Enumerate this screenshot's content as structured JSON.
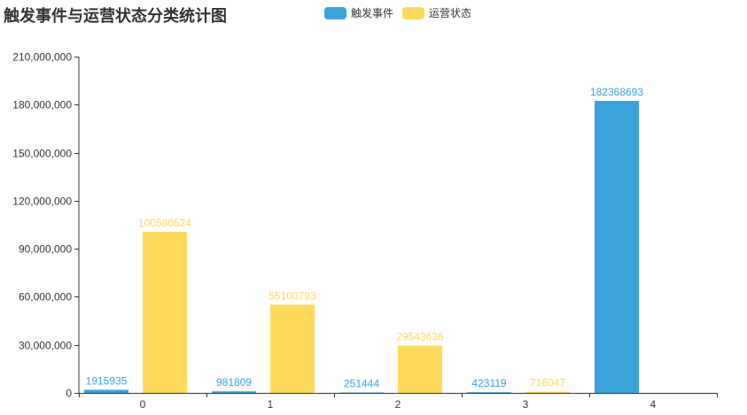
{
  "chart_data": {
    "type": "bar",
    "title": "触发事件与运营状态分类统计图",
    "categories": [
      "0",
      "1",
      "2",
      "3",
      "4"
    ],
    "series": [
      {
        "name": "触发事件",
        "color": "#3aa3dc",
        "values": [
          1915935,
          981809,
          251444,
          423119,
          182368693
        ],
        "labels": [
          "1915935",
          "981809",
          "251444",
          "423119",
          "182368693"
        ]
      },
      {
        "name": "运营状态",
        "color": "#ffd95c",
        "values": [
          100580524,
          55100793,
          29543636,
          716047,
          null
        ],
        "labels": [
          "100580524",
          "55100793",
          "29543636",
          "716047",
          ""
        ]
      }
    ],
    "ylim": [
      0,
      210000000
    ],
    "yticks": [
      0,
      30000000,
      60000000,
      90000000,
      120000000,
      150000000,
      180000000,
      210000000
    ],
    "ytick_labels": [
      "0",
      "30,000,000",
      "60,000,000",
      "90,000,000",
      "120,000,000",
      "150,000,000",
      "180,000,000",
      "210,000,000"
    ],
    "xlabel": "",
    "ylabel": "",
    "grid": false,
    "legend": "top-center"
  }
}
